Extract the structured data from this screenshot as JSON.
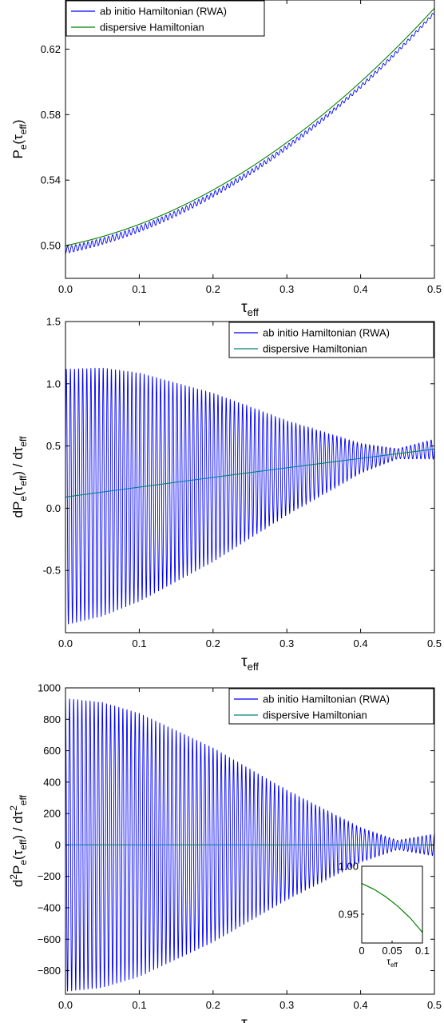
{
  "chart_data": [
    {
      "type": "line",
      "xlabel_main": "τ",
      "xlabel_sub": "eff",
      "ylabel_parts": [
        {
          "t": "P",
          "s": "base"
        },
        {
          "t": "e",
          "s": "sub"
        },
        {
          "t": "(τ",
          "s": "base"
        },
        {
          "t": "eff",
          "s": "sub"
        },
        {
          "t": ")",
          "s": "base"
        }
      ],
      "xlim": [
        0,
        0.5
      ],
      "ylim": [
        0.48,
        0.65
      ],
      "xticks": [
        0,
        0.1,
        0.2,
        0.3,
        0.4,
        0.5
      ],
      "xtick_labels": [
        "0.0",
        "0.1",
        "0.2",
        "0.3",
        "0.4",
        "0.5"
      ],
      "yticks": [
        0.5,
        0.54,
        0.58,
        0.62
      ],
      "ytick_labels": [
        "0.50",
        "0.54",
        "0.58",
        "0.62"
      ],
      "legend_position": "top-left",
      "series": [
        {
          "name": "ab initio Hamiltonian (RWA)",
          "color": "#0000ff",
          "model": "Pe_rwa"
        },
        {
          "name": "dispersive Hamiltonian",
          "color": "#008000",
          "model": "Pe_disp"
        }
      ],
      "oscillation_cycles": 90
    },
    {
      "type": "line",
      "xlabel_main": "τ",
      "xlabel_sub": "eff",
      "ylabel_parts": [
        {
          "t": "dP",
          "s": "base"
        },
        {
          "t": "e",
          "s": "sub"
        },
        {
          "t": "(τ",
          "s": "base"
        },
        {
          "t": "eff",
          "s": "sub"
        },
        {
          "t": ") / dτ",
          "s": "base"
        },
        {
          "t": "eff",
          "s": "sub"
        }
      ],
      "xlim": [
        0,
        0.5
      ],
      "ylim": [
        -1.0,
        1.5
      ],
      "xticks": [
        0,
        0.1,
        0.2,
        0.3,
        0.4,
        0.5
      ],
      "xtick_labels": [
        "0.0",
        "0.1",
        "0.2",
        "0.3",
        "0.4",
        "0.5"
      ],
      "yticks": [
        -0.5,
        0,
        0.5,
        1.0,
        1.5
      ],
      "ytick_labels": [
        "-0.5",
        "0.0",
        "0.5",
        "1.0",
        "1.5"
      ],
      "legend_position": "top-right",
      "series": [
        {
          "name": "ab initio Hamiltonian (RWA)",
          "color": "#0000ff",
          "model": "dP_rwa"
        },
        {
          "name": "dispersive Hamiltonian",
          "color": "#008080",
          "model": "dP_disp"
        }
      ],
      "envelope_amplitude_points": {
        "x": [
          0.0,
          0.05,
          0.1,
          0.2,
          0.3,
          0.4,
          0.45,
          0.5
        ],
        "amp": [
          1.03,
          1.0,
          0.92,
          0.68,
          0.38,
          0.12,
          0.04,
          0.08
        ]
      },
      "oscillation_cycles": 90
    },
    {
      "type": "line",
      "xlabel_main": "τ",
      "xlabel_sub": "eff",
      "ylabel_parts": [
        {
          "t": "d",
          "s": "base"
        },
        {
          "t": "2",
          "s": "sup"
        },
        {
          "t": "P",
          "s": "base"
        },
        {
          "t": "e",
          "s": "sub"
        },
        {
          "t": "(τ",
          "s": "base"
        },
        {
          "t": "eff",
          "s": "sub"
        },
        {
          "t": ") / dτ",
          "s": "base"
        },
        {
          "t": "2",
          "s": "sup"
        },
        {
          "t": "eff",
          "s": "sub"
        }
      ],
      "xlim": [
        0,
        0.5
      ],
      "ylim": [
        -950,
        1000
      ],
      "xticks": [
        0,
        0.1,
        0.2,
        0.3,
        0.4,
        0.5
      ],
      "xtick_labels": [
        "0.0",
        "0.1",
        "0.2",
        "0.3",
        "0.4",
        "0.5"
      ],
      "yticks": [
        -800,
        -600,
        -400,
        -200,
        0,
        200,
        400,
        600,
        800,
        1000
      ],
      "ytick_labels": [
        "−800",
        "−600",
        "−400",
        "−200",
        "0",
        "200",
        "400",
        "600",
        "800",
        "1000"
      ],
      "legend_position": "top-right",
      "series": [
        {
          "name": "ab initio Hamiltonian (RWA)",
          "color": "#0000ff",
          "model": "d2P_rwa"
        },
        {
          "name": "dispersive Hamiltonian",
          "color": "#008080",
          "model": "d2P_disp"
        }
      ],
      "envelope_amplitude_points": {
        "x": [
          0.0,
          0.05,
          0.1,
          0.2,
          0.3,
          0.4,
          0.45,
          0.5
        ],
        "amp": [
          935,
          910,
          840,
          620,
          350,
          110,
          30,
          70
        ]
      },
      "oscillation_cycles": 90,
      "inset": {
        "xlim": [
          0,
          0.1
        ],
        "ylim": [
          0.92,
          1.0
        ],
        "xticks": [
          0,
          0.05,
          0.1
        ],
        "xtick_labels": [
          "0",
          "0.05",
          "0.1"
        ],
        "yticks": [
          0.95,
          1.0
        ],
        "ytick_labels": [
          "0.95",
          "1.00"
        ],
        "xlabel_main": "τ",
        "xlabel_sub": "eff",
        "series": {
          "color": "#008000",
          "x": [
            0,
            0.02,
            0.04,
            0.06,
            0.08,
            0.1
          ],
          "y": [
            0.982,
            0.976,
            0.968,
            0.958,
            0.946,
            0.931
          ]
        }
      }
    }
  ]
}
